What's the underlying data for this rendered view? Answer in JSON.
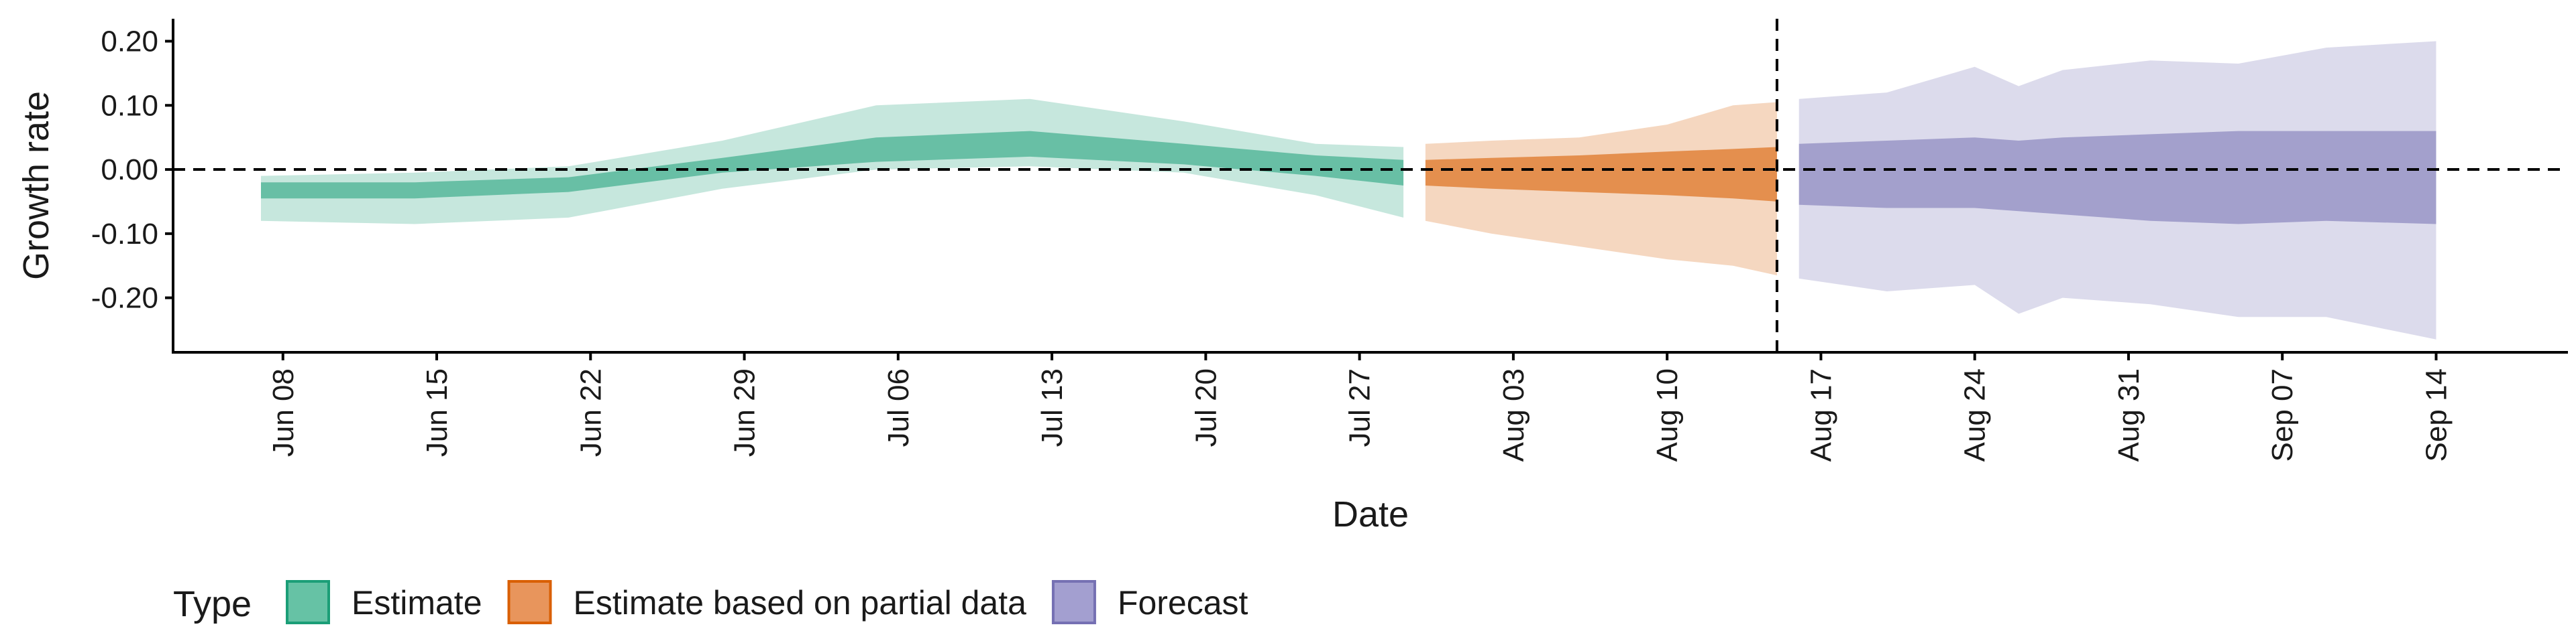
{
  "chart_data": {
    "type": "area",
    "xlabel": "Date",
    "ylabel": "Growth rate",
    "ylim": [
      -0.285,
      0.235
    ],
    "yticks": [
      -0.2,
      -0.1,
      0.0,
      0.1,
      0.2
    ],
    "ytick_labels": [
      "-0.20",
      "-0.10",
      "0.00",
      "0.10",
      "0.20"
    ],
    "xlim": [
      "2020-06-03",
      "2020-09-20"
    ],
    "xticks": [
      "2020-06-08",
      "2020-06-15",
      "2020-06-22",
      "2020-06-29",
      "2020-07-06",
      "2020-07-13",
      "2020-07-20",
      "2020-07-27",
      "2020-08-03",
      "2020-08-10",
      "2020-08-17",
      "2020-08-24",
      "2020-08-31",
      "2020-09-07",
      "2020-09-14"
    ],
    "xtick_labels": [
      "Jun 08",
      "Jun 15",
      "Jun 22",
      "Jun 29",
      "Jul 06",
      "Jul 13",
      "Jul 20",
      "Jul 27",
      "Aug 03",
      "Aug 10",
      "Aug 17",
      "Aug 24",
      "Aug 31",
      "Sep 07",
      "Sep 14"
    ],
    "hline_y": 0.0,
    "vline_x": "2020-08-15",
    "grid": false,
    "legend": {
      "title": "Type",
      "placement": "bottom-left",
      "entries": [
        {
          "label": "Estimate",
          "fill": "#66c2a5",
          "stroke": "#1b9e77"
        },
        {
          "label": "Estimate based on partial data",
          "fill": "#e8955c",
          "stroke": "#d95f02"
        },
        {
          "label": "Forecast",
          "fill": "#a39fd0",
          "stroke": "#7570b3"
        }
      ]
    },
    "series": [
      {
        "name": "Estimate",
        "color": "#1b9e77",
        "outer_opacity": 0.25,
        "inner_opacity": 0.55,
        "x": [
          "2020-06-07",
          "2020-06-14",
          "2020-06-21",
          "2020-06-28",
          "2020-07-05",
          "2020-07-12",
          "2020-07-19",
          "2020-07-25",
          "2020-07-29"
        ],
        "outer_lower": [
          -0.08,
          -0.085,
          -0.075,
          -0.03,
          0.0,
          0.005,
          -0.005,
          -0.04,
          -0.075
        ],
        "outer_upper": [
          -0.01,
          -0.005,
          0.005,
          0.045,
          0.1,
          0.11,
          0.075,
          0.04,
          0.035
        ],
        "inner_lower": [
          -0.045,
          -0.045,
          -0.035,
          -0.005,
          0.012,
          0.02,
          0.008,
          -0.01,
          -0.025
        ],
        "inner_upper": [
          -0.02,
          -0.02,
          -0.012,
          0.018,
          0.05,
          0.06,
          0.04,
          0.022,
          0.015
        ]
      },
      {
        "name": "Estimate based on partial data",
        "color": "#d95f02",
        "outer_opacity": 0.25,
        "inner_opacity": 0.6,
        "x": [
          "2020-07-30",
          "2020-08-02",
          "2020-08-06",
          "2020-08-10",
          "2020-08-13",
          "2020-08-15"
        ],
        "outer_lower": [
          -0.08,
          -0.1,
          -0.12,
          -0.14,
          -0.15,
          -0.165
        ],
        "outer_upper": [
          0.04,
          0.045,
          0.05,
          0.07,
          0.1,
          0.105
        ],
        "inner_lower": [
          -0.025,
          -0.03,
          -0.035,
          -0.04,
          -0.045,
          -0.05
        ],
        "inner_upper": [
          0.015,
          0.018,
          0.022,
          0.028,
          0.032,
          0.035
        ]
      },
      {
        "name": "Forecast",
        "color": "#7570b3",
        "outer_opacity": 0.25,
        "inner_opacity": 0.55,
        "x": [
          "2020-08-16",
          "2020-08-20",
          "2020-08-24",
          "2020-08-26",
          "2020-08-28",
          "2020-09-01",
          "2020-09-05",
          "2020-09-09",
          "2020-09-14"
        ],
        "outer_lower": [
          -0.17,
          -0.19,
          -0.18,
          -0.225,
          -0.2,
          -0.21,
          -0.23,
          -0.23,
          -0.265
        ],
        "outer_upper": [
          0.11,
          0.12,
          0.16,
          0.13,
          0.155,
          0.17,
          0.165,
          0.19,
          0.2
        ],
        "inner_lower": [
          -0.055,
          -0.06,
          -0.06,
          -0.065,
          -0.07,
          -0.08,
          -0.085,
          -0.08,
          -0.085
        ],
        "inner_upper": [
          0.04,
          0.045,
          0.05,
          0.045,
          0.05,
          0.055,
          0.06,
          0.06,
          0.06
        ]
      }
    ]
  }
}
